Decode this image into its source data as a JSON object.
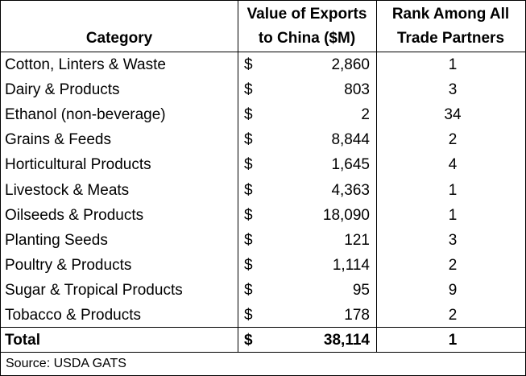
{
  "table": {
    "headers": {
      "category": "Category",
      "value_line1": "Value of Exports",
      "value_line2": "to China ($M)",
      "rank_line1": "Rank Among All",
      "rank_line2": "Trade Partners"
    },
    "rows": [
      {
        "category": "Cotton, Linters & Waste",
        "currency": "$",
        "value": "2,860",
        "rank": "1"
      },
      {
        "category": "Dairy & Products",
        "currency": "$",
        "value": "803",
        "rank": "3"
      },
      {
        "category": "Ethanol (non-beverage)",
        "currency": "$",
        "value": "2",
        "rank": "34"
      },
      {
        "category": "Grains & Feeds",
        "currency": "$",
        "value": "8,844",
        "rank": "2"
      },
      {
        "category": "Horticultural Products",
        "currency": "$",
        "value": "1,645",
        "rank": "4"
      },
      {
        "category": "Livestock & Meats",
        "currency": "$",
        "value": "4,363",
        "rank": "1"
      },
      {
        "category": "Oilseeds & Products",
        "currency": "$",
        "value": "18,090",
        "rank": "1"
      },
      {
        "category": "Planting Seeds",
        "currency": "$",
        "value": "121",
        "rank": "3"
      },
      {
        "category": "Poultry & Products",
        "currency": "$",
        "value": "1,114",
        "rank": "2"
      },
      {
        "category": "Sugar & Tropical Products",
        "currency": "$",
        "value": "95",
        "rank": "9"
      },
      {
        "category": "Tobacco & Products",
        "currency": "$",
        "value": "178",
        "rank": "2"
      }
    ],
    "total": {
      "category": "Total",
      "currency": "$",
      "value": "38,114",
      "rank": "1"
    },
    "source": "Source: USDA GATS"
  }
}
